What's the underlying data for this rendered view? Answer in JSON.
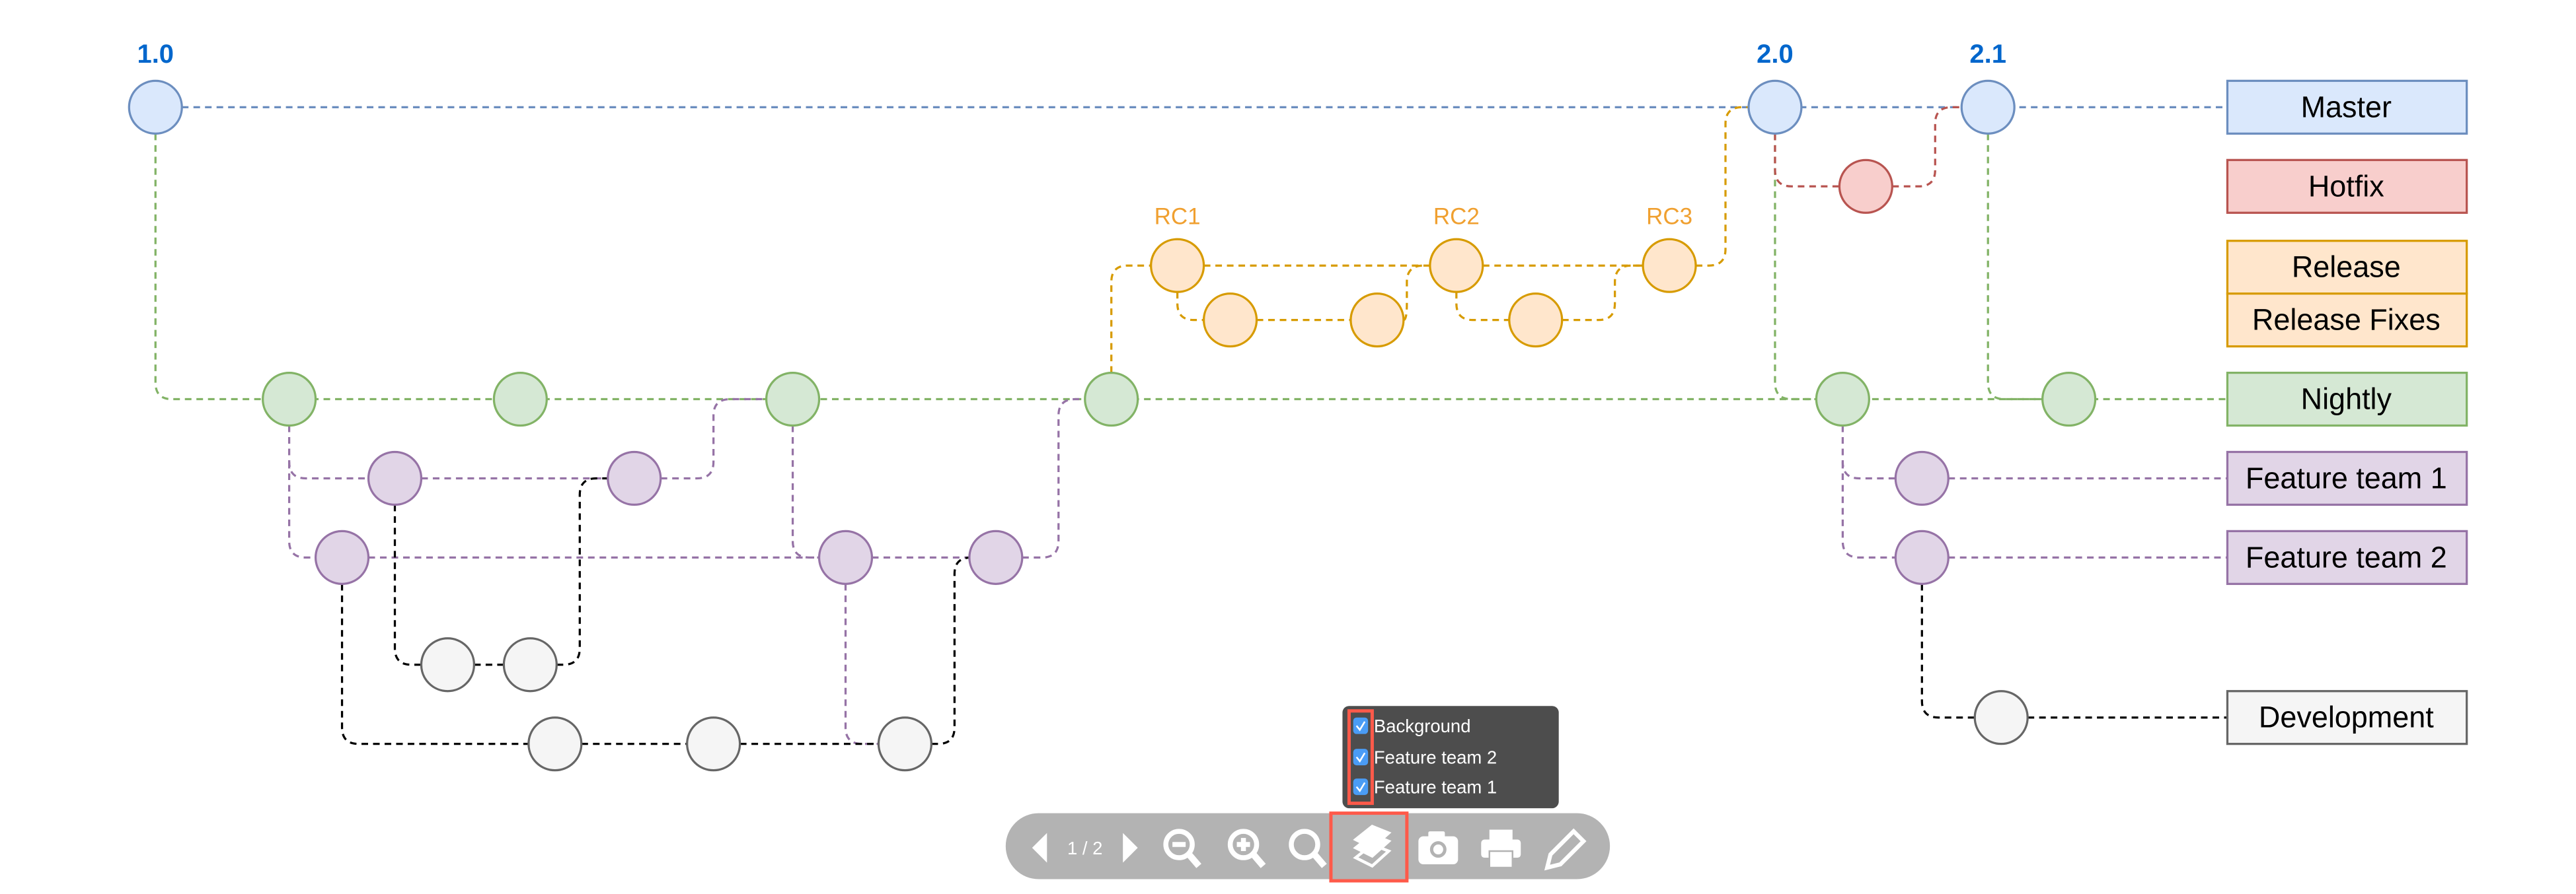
{
  "versions": {
    "v1": "1.0",
    "v2": "2.0",
    "v3": "2.1"
  },
  "release_candidates": [
    "RC1",
    "RC2",
    "RC3"
  ],
  "legend": {
    "master": "Master",
    "hotfix": "Hotfix",
    "release": "Release",
    "release_fixes": "Release Fixes",
    "nightly": "Nightly",
    "feature_team_1": "Feature team 1",
    "feature_team_2": "Feature team 2",
    "development": "Development"
  },
  "colors": {
    "master": "#dae8fc",
    "master_stroke": "#6c8ebf",
    "hotfix": "#f8cecc",
    "hotfix_stroke": "#b85450",
    "release": "#ffe6cc",
    "release_stroke": "#d79b00",
    "nightly": "#d5e8d4",
    "nightly_stroke": "#82b366",
    "feature": "#e1d5e7",
    "feature_stroke": "#9673a6",
    "development": "#f5f5f5",
    "development_stroke": "#666666",
    "version_label": "#0066cc",
    "highlight": "#ff5a4a"
  },
  "layers_panel": {
    "items": [
      {
        "label": "Background",
        "checked": true
      },
      {
        "label": "Feature team 2",
        "checked": true
      },
      {
        "label": "Feature team 1",
        "checked": true
      }
    ]
  },
  "toolbar": {
    "page_indicator": "1 / 2",
    "icons": [
      "prev-page-icon",
      "next-page-icon",
      "zoom-out-icon",
      "zoom-in-icon",
      "zoom-fit-icon",
      "layers-icon",
      "camera-icon",
      "print-icon",
      "edit-icon"
    ]
  }
}
